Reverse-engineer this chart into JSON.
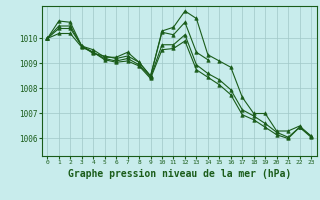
{
  "background_color": "#c8ecec",
  "grid_color": "#a0c8c8",
  "line_color": "#1a5c1a",
  "marker_color": "#1a5c1a",
  "xlabel": "Graphe pression niveau de la mer (hPa)",
  "xlabel_fontsize": 7,
  "ylabel_ticks": [
    1006,
    1007,
    1008,
    1009,
    1010
  ],
  "xlim": [
    -0.5,
    23.5
  ],
  "ylim": [
    1005.3,
    1011.3
  ],
  "series": [
    {
      "x": [
        0,
        1,
        2,
        3,
        4,
        5,
        6,
        7,
        8,
        9,
        10,
        11,
        12,
        13,
        14
      ],
      "y": [
        1010.0,
        1010.5,
        1010.5,
        1009.7,
        1009.55,
        1009.25,
        1009.25,
        1009.45,
        1009.05,
        1008.5,
        1010.25,
        1010.15,
        1010.65,
        1009.45,
        1009.15
      ],
      "marker": "^",
      "markersize": 2.5
    },
    {
      "x": [
        0,
        1,
        2,
        3,
        4,
        5,
        6,
        7,
        8,
        9,
        10,
        11,
        12,
        13,
        14,
        15,
        16,
        17,
        18,
        19,
        20,
        21,
        22,
        23
      ],
      "y": [
        1010.0,
        1010.7,
        1010.65,
        1009.7,
        1009.4,
        1009.3,
        1009.2,
        1009.3,
        1009.05,
        1008.5,
        1010.3,
        1010.45,
        1011.1,
        1010.8,
        1009.35,
        1009.1,
        1008.85,
        1007.65,
        1007.0,
        1007.0,
        1006.3,
        1006.3,
        1006.5,
        1006.1
      ],
      "marker": "^",
      "markersize": 2.5
    },
    {
      "x": [
        0,
        1,
        2,
        3,
        4,
        5,
        6,
        7,
        8,
        9,
        10,
        11,
        12,
        13,
        14,
        15,
        16,
        17,
        18,
        19,
        20,
        21,
        22,
        23
      ],
      "y": [
        1010.0,
        1010.4,
        1010.4,
        1009.7,
        1009.45,
        1009.2,
        1009.1,
        1009.2,
        1008.95,
        1008.45,
        1009.75,
        1009.75,
        1010.15,
        1008.95,
        1008.6,
        1008.35,
        1007.95,
        1007.15,
        1006.9,
        1006.6,
        1006.25,
        1006.05,
        1006.45,
        1006.1
      ],
      "marker": "^",
      "markersize": 2.5
    },
    {
      "x": [
        0,
        1,
        2,
        3,
        4,
        5,
        6,
        7,
        8,
        9,
        10,
        11,
        12,
        13,
        14,
        15,
        16,
        17,
        18,
        19,
        20,
        21,
        22,
        23
      ],
      "y": [
        1010.0,
        1010.2,
        1010.2,
        1009.65,
        1009.45,
        1009.15,
        1009.05,
        1009.1,
        1008.9,
        1008.4,
        1009.55,
        1009.6,
        1009.9,
        1008.75,
        1008.45,
        1008.15,
        1007.75,
        1006.95,
        1006.75,
        1006.45,
        1006.15,
        1006.0,
        1006.45,
        1006.05
      ],
      "marker": "^",
      "markersize": 2.5
    }
  ]
}
